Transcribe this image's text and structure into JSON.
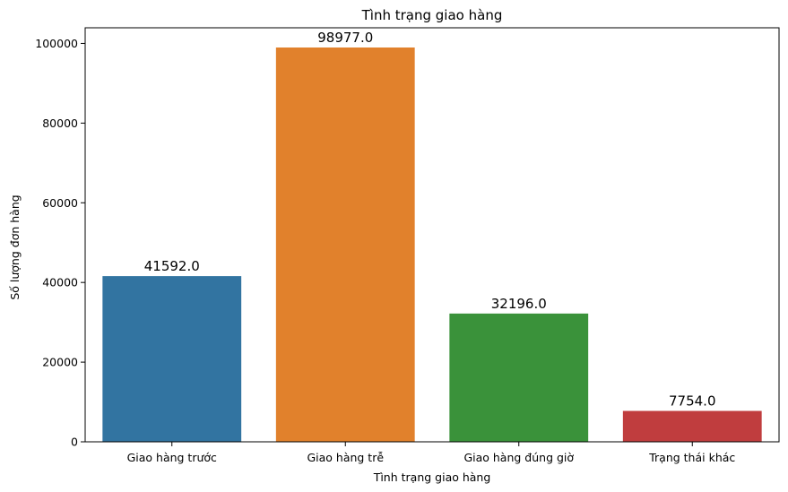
{
  "chart_data": {
    "type": "bar",
    "title": "Tình trạng giao hàng",
    "xlabel": "Tình trạng giao hàng",
    "ylabel": "Số lượng đơn hàng",
    "categories": [
      "Giao hàng trước",
      "Giao hàng trễ",
      "Giao hàng đúng giờ",
      "Trạng thái khác"
    ],
    "values": [
      41592.0,
      98977.0,
      32196.0,
      7754.0
    ],
    "data_labels": [
      "41592.0",
      "98977.0",
      "32196.0",
      "7754.0"
    ],
    "colors": [
      "#3274a1",
      "#e1812c",
      "#3a923a",
      "#c03d3e"
    ],
    "ylim": [
      0,
      103926
    ],
    "yticks": [
      0,
      20000,
      40000,
      60000,
      80000,
      100000
    ],
    "ytick_labels": [
      "0",
      "20000",
      "40000",
      "60000",
      "80000",
      "100000"
    ],
    "grid": false,
    "legend": "none"
  }
}
